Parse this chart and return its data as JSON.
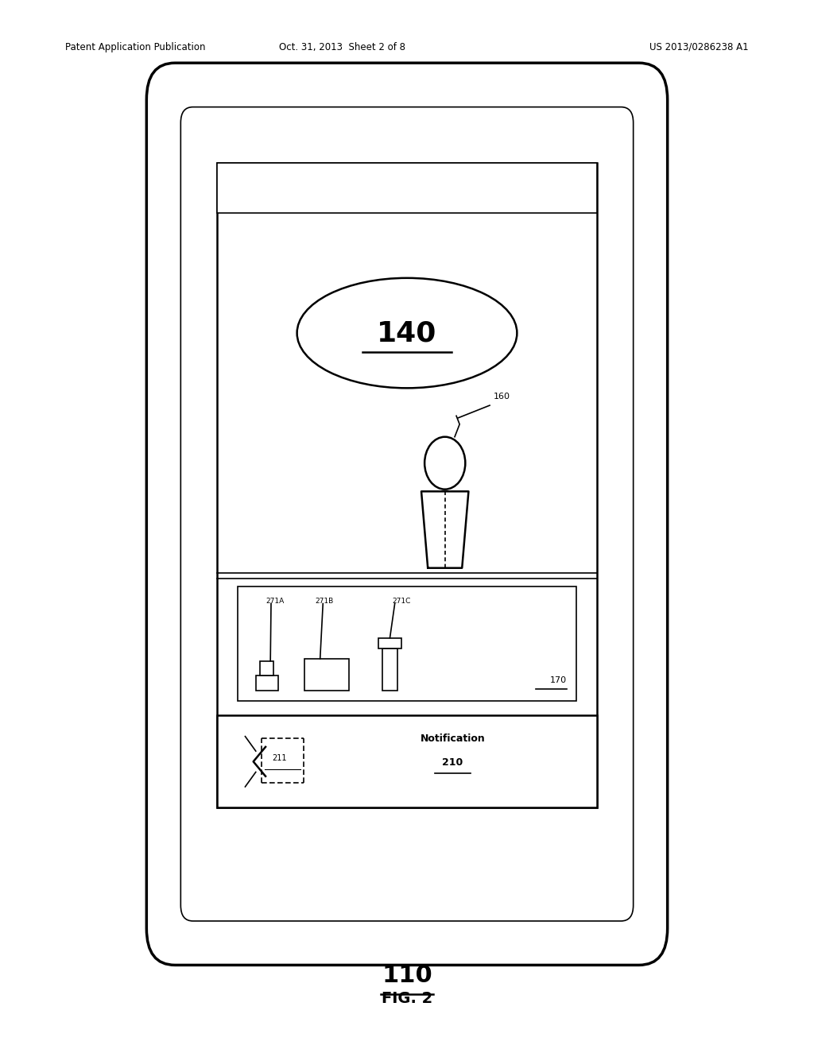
{
  "bg_color": "#ffffff",
  "line_color": "#000000",
  "header_text_left": "Patent Application Publication",
  "header_text_mid": "Oct. 31, 2013  Sheet 2 of 8",
  "header_text_right": "US 2013/0286238 A1",
  "fig_label": "FIG. 2",
  "label_110": "110",
  "label_140": "140",
  "label_160": "160",
  "label_170": "170",
  "label_210": "210",
  "label_211": "211",
  "label_271A": "271A",
  "label_271B": "271B",
  "label_271C": "271C",
  "notification_text": "Notification"
}
